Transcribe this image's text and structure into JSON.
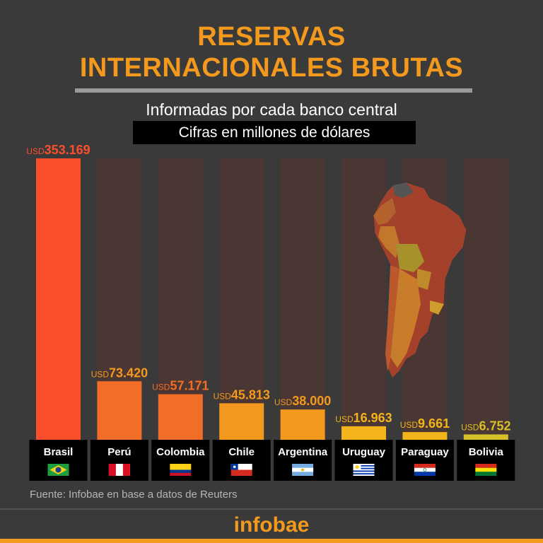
{
  "header": {
    "title_line1": "RESERVAS",
    "title_line2": "INTERNACIONALES BRUTAS",
    "subtitle": "Informadas por cada banco central",
    "note": "Cifras en millones de dólares"
  },
  "colors": {
    "accent": "#f39a1e",
    "background": "#3a3a3a",
    "track": "#4a3632"
  },
  "chart_data": {
    "type": "bar",
    "title": "RESERVAS INTERNACIONALES BRUTAS",
    "subtitle": "Informadas por cada banco central",
    "unit_note": "Cifras en millones de dólares",
    "ylim": [
      0,
      353169
    ],
    "grid": false,
    "currency_prefix": "USD",
    "categories": [
      "Brasil",
      "Perú",
      "Colombia",
      "Chile",
      "Argentina",
      "Uruguay",
      "Paraguay",
      "Bolivia"
    ],
    "values": [
      353169,
      73420,
      57171,
      45813,
      38000,
      16963,
      9661,
      6752
    ],
    "value_labels": [
      "353.169",
      "73.420",
      "57.171",
      "45.813",
      "38.000",
      "16.963",
      "9.661",
      "6.752"
    ],
    "bar_colors": [
      "#fb4f2b",
      "#f26d26",
      "#f26d26",
      "#f39a1e",
      "#f39a1e",
      "#f3b51b",
      "#f3b51b",
      "#d6c129"
    ],
    "label_colors": [
      "#fb4f2b",
      "#f39a1e",
      "#f26d26",
      "#f39a1e",
      "#f39a1e",
      "#f3b51b",
      "#f3b51b",
      "#d6c129"
    ],
    "flags": [
      "brazil-flag",
      "peru-flag",
      "colombia-flag",
      "chile-flag",
      "argentina-flag",
      "uruguay-flag",
      "paraguay-flag",
      "bolivia-flag"
    ]
  },
  "decoration": {
    "map": "south-america-map"
  },
  "footer": {
    "source": "Fuente: Infobae en base a datos de Reuters",
    "logo": "infobae"
  }
}
